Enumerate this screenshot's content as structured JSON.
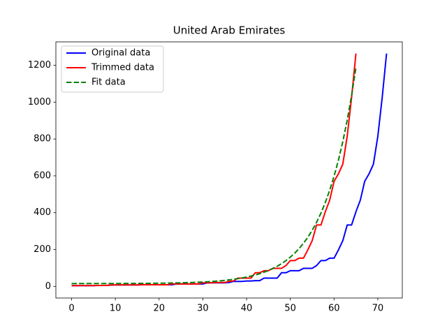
{
  "chart_data": {
    "type": "line",
    "title": "United Arab Emirates",
    "x": [
      0,
      1,
      2,
      3,
      4,
      5,
      6,
      7,
      8,
      9,
      10,
      11,
      12,
      13,
      14,
      15,
      16,
      17,
      18,
      19,
      20,
      21,
      22,
      23,
      24,
      25,
      26,
      27,
      28,
      29,
      30,
      31,
      32,
      33,
      34,
      35,
      36,
      37,
      38,
      39,
      40,
      41,
      42,
      43,
      44,
      45,
      46,
      47,
      48,
      49,
      50,
      51,
      52,
      53,
      54,
      55,
      56,
      57,
      58,
      59,
      60,
      61,
      62,
      63,
      64,
      65,
      66,
      67,
      68,
      69,
      70,
      71,
      72
    ],
    "series": [
      {
        "name": "Original data",
        "color": "#0000ff",
        "dashed": false,
        "values": [
          4,
          4,
          4,
          4,
          4,
          4,
          5,
          5,
          5,
          7,
          8,
          8,
          8,
          8,
          8,
          8,
          9,
          9,
          9,
          9,
          9,
          9,
          9,
          9,
          13,
          13,
          13,
          13,
          13,
          13,
          13,
          19,
          19,
          19,
          19,
          19,
          21,
          27,
          27,
          27,
          29,
          29,
          31,
          31,
          45,
          45,
          45,
          45,
          74,
          74,
          85,
          85,
          85,
          98,
          98,
          98,
          113,
          140,
          140,
          153,
          153,
          198,
          248,
          333,
          333,
          405,
          468,
          570,
          611,
          664,
          814,
          1024,
          1264
        ]
      },
      {
        "name": "Trimmed data",
        "color": "#ff0000",
        "dashed": false,
        "values": [
          4,
          4,
          4,
          4,
          4,
          4,
          5,
          5,
          5,
          8,
          8,
          8,
          8,
          8,
          8,
          8,
          9,
          9,
          9,
          9,
          9,
          9,
          9,
          13,
          13,
          13,
          13,
          13,
          13,
          13,
          19,
          19,
          19,
          21,
          21,
          21,
          27,
          29,
          45,
          45,
          45,
          45,
          74,
          74,
          85,
          85,
          98,
          98,
          98,
          113,
          140,
          140,
          153,
          153,
          198,
          248,
          333,
          333,
          405,
          468,
          570,
          611,
          664,
          814,
          1024,
          1264,
          null,
          null,
          null,
          null,
          null,
          null,
          null
        ]
      },
      {
        "name": "Fit data",
        "color": "#008000",
        "dashed": true,
        "values": [
          15.1,
          15.2,
          15.2,
          15.2,
          15.2,
          15.3,
          15.3,
          15.3,
          15.4,
          15.5,
          15.5,
          15.6,
          15.7,
          15.8,
          15.9,
          16.1,
          16.2,
          16.4,
          16.6,
          16.9,
          17.2,
          17.5,
          17.9,
          18.3,
          18.8,
          19.3,
          20.0,
          20.7,
          21.6,
          22.6,
          23.7,
          25.0,
          26.6,
          28.3,
          30.3,
          32.6,
          35.2,
          38.3,
          41.8,
          45.8,
          50.4,
          55.8,
          61.9,
          68.9,
          77.0,
          86.3,
          97.1,
          109.4,
          123.6,
          139.9,
          158.7,
          180.2,
          205.1,
          233.6,
          266.5,
          304.4,
          347.9,
          397.8,
          455.3,
          521.6,
          597.6,
          685.2,
          785.9,
          901.7,
          1035.1,
          1188.1,
          null,
          null,
          null,
          null,
          null,
          null,
          null
        ]
      }
    ],
    "xlim": [
      -3.6,
      75.6
    ],
    "ylim": [
      -63.2,
      1327.2
    ],
    "xticks": [
      0,
      10,
      20,
      30,
      40,
      50,
      60,
      70
    ],
    "yticks": [
      0,
      200,
      400,
      600,
      800,
      1000,
      1200
    ],
    "legend": "upper left"
  }
}
